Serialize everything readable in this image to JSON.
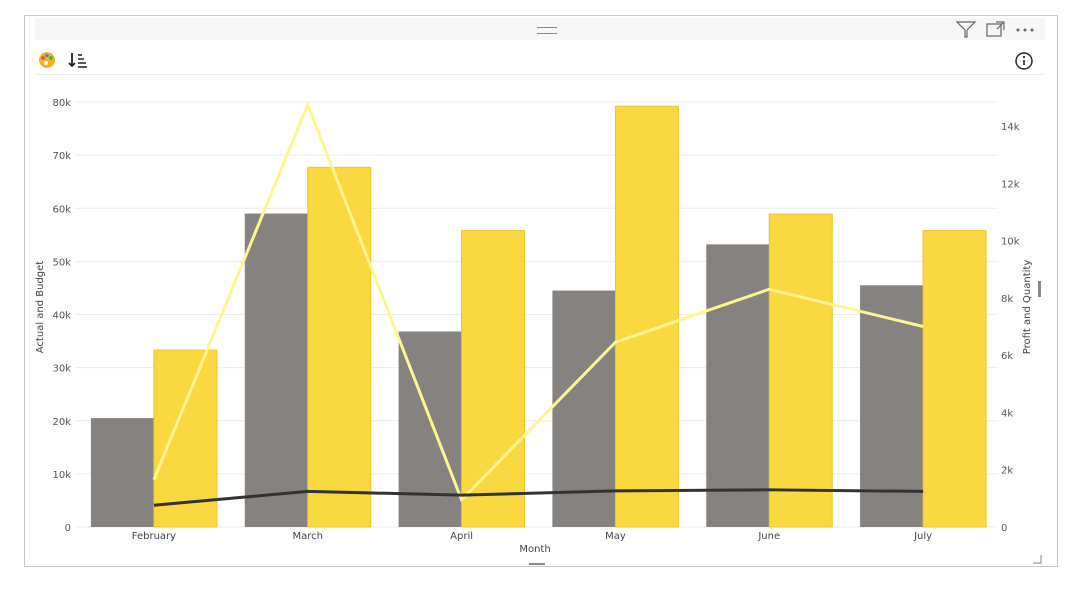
{
  "visual": {
    "header_icons": [
      "filter-icon",
      "focus-mode-icon",
      "more-options-icon"
    ],
    "toolbar_icons": [
      "palette-icon",
      "sort-descending-icon",
      "info-icon"
    ]
  },
  "chart_data": {
    "type": "bar",
    "xlabel": "Month",
    "ylabel_left": "Actual and Budget",
    "ylabel_right": "Profit and Quantity",
    "categories": [
      "February",
      "March",
      "April",
      "May",
      "June",
      "July"
    ],
    "y_left_ticks": [
      "0",
      "10k",
      "20k",
      "30k",
      "40k",
      "50k",
      "60k",
      "70k",
      "80k"
    ],
    "y_right_ticks": [
      "0",
      "2k",
      "4k",
      "6k",
      "8k",
      "10k",
      "12k",
      "14k"
    ],
    "ylim_left": [
      0,
      80000
    ],
    "ylim_right": [
      0,
      15300
    ],
    "bar_series": [
      {
        "values": [
          20500,
          59000,
          36800,
          44500,
          53200,
          45500
        ],
        "color": "#858280"
      },
      {
        "values": [
          33300,
          67700,
          55800,
          79200,
          58900,
          55800
        ],
        "color": "#fad840"
      }
    ],
    "line_series": [
      {
        "values": [
          1650,
          14750,
          950,
          6450,
          8300,
          7000
        ],
        "color": "#fdf68e",
        "axis": "right"
      },
      {
        "values": [
          4100,
          6700,
          6000,
          6800,
          7000,
          6700
        ],
        "color": "#333333",
        "axis": "left"
      }
    ],
    "grid": true,
    "legend": "none"
  }
}
